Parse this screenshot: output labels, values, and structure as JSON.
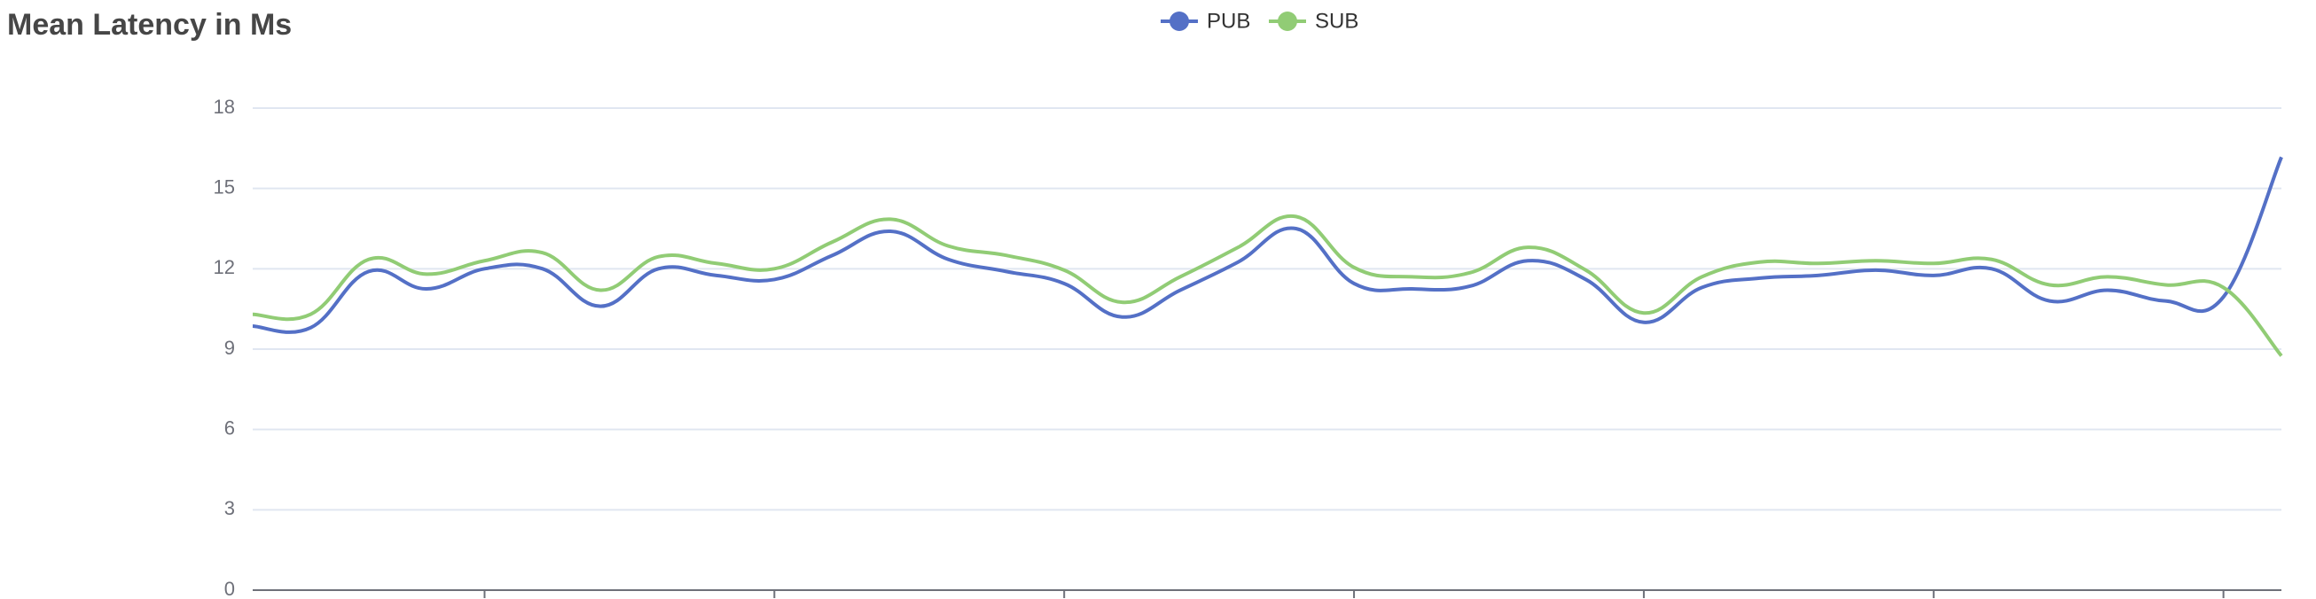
{
  "chart_data": {
    "type": "line",
    "title": "Mean Latency in Ms",
    "categories": [
      null,
      null,
      null,
      null,
      null,
      null,
      null,
      null,
      null,
      null,
      null,
      null,
      null,
      null,
      null,
      null,
      null,
      null,
      null,
      null,
      null,
      null,
      null,
      null,
      null,
      null,
      null,
      null,
      null,
      null,
      null,
      null,
      null,
      null,
      null,
      null
    ],
    "series": [
      {
        "name": "PUB",
        "color": "#5470c6",
        "values": [
          9.86,
          9.8,
          11.9,
          11.25,
          12.0,
          12.0,
          10.6,
          12.0,
          11.75,
          11.6,
          12.5,
          13.4,
          12.35,
          11.9,
          11.45,
          10.2,
          11.2,
          12.25,
          13.5,
          11.45,
          11.25,
          11.35,
          12.3,
          11.6,
          10.0,
          11.3,
          11.65,
          11.75,
          11.95,
          11.75,
          12.0,
          10.8,
          11.2,
          10.8,
          10.95,
          16.17
        ]
      },
      {
        "name": "SUB",
        "color": "#91cc75",
        "values": [
          10.3,
          10.3,
          12.35,
          11.8,
          12.3,
          12.6,
          11.2,
          12.45,
          12.2,
          12.0,
          13.0,
          13.85,
          12.85,
          12.5,
          11.95,
          10.75,
          11.7,
          12.8,
          13.95,
          12.05,
          11.7,
          11.85,
          12.8,
          11.95,
          10.35,
          11.7,
          12.25,
          12.2,
          12.3,
          12.2,
          12.35,
          11.4,
          11.7,
          11.4,
          11.3,
          8.75
        ]
      }
    ],
    "ylim": [
      0,
      18
    ],
    "yticks": [
      0,
      3,
      6,
      9,
      12,
      15,
      18
    ],
    "grid": true,
    "legend": "top"
  }
}
